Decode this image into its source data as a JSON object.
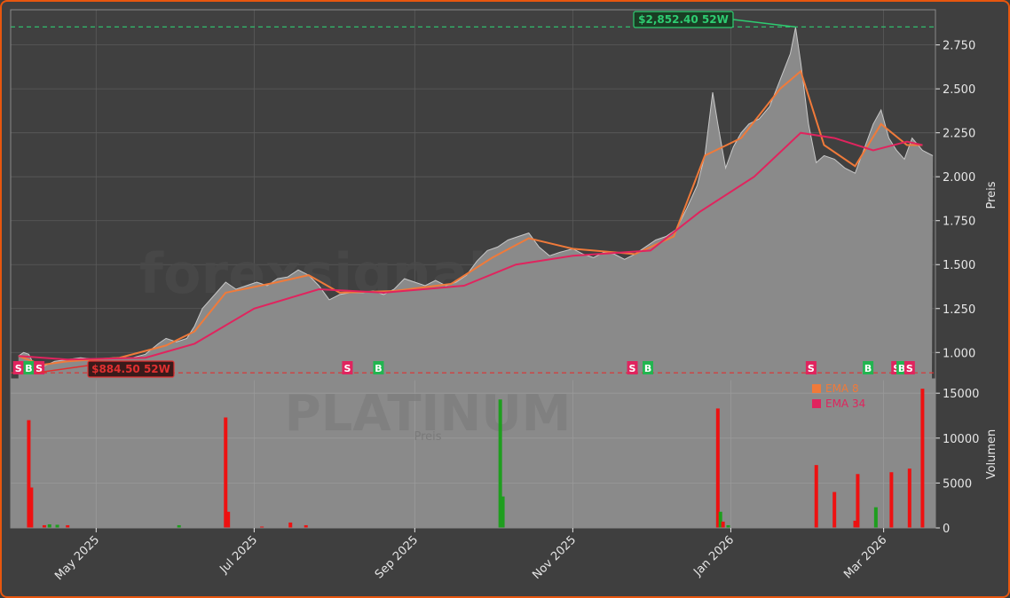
{
  "colors": {
    "background": "#3f3f3f",
    "plot_bg": "#404040",
    "border": "#e8560e",
    "area": "#8a8a8a",
    "ema8": "#f07a3a",
    "ema34": "#e0245e",
    "high": "#2ecc71",
    "low": "#e03030",
    "buy": "#22b550",
    "sell": "#e0245e",
    "vol_up": "#1e9e1e",
    "vol_down": "#ee1111"
  },
  "watermark": {
    "site": "forexsignale.trade",
    "symbol": "PLATINUM",
    "sub": "Preis"
  },
  "price_chart": {
    "ylabel": "Preis",
    "ylim": [
      0.85,
      2.95
    ],
    "yticks": [
      {
        "v": 1.0,
        "label": "1.000"
      },
      {
        "v": 1.25,
        "label": "1.250"
      },
      {
        "v": 1.5,
        "label": "1.500"
      },
      {
        "v": 1.75,
        "label": "1.750"
      },
      {
        "v": 2.0,
        "label": "2.000"
      },
      {
        "v": 2.25,
        "label": "2.250"
      },
      {
        "v": 2.5,
        "label": "2.500"
      },
      {
        "v": 2.75,
        "label": "2.750"
      }
    ],
    "high_label": "$2,852.40 52W",
    "low_label": "$884.50 52W",
    "high_value": 2.8524,
    "low_value": 0.8845,
    "high_date": "2026-01-26",
    "low_date": "2025-04-08",
    "legend": [
      {
        "label": "EMA 8",
        "color": "#f07a3a"
      },
      {
        "label": "EMA 34",
        "color": "#e0245e"
      }
    ],
    "price_series": [
      {
        "d": "2025-04-01",
        "v": 0.98
      },
      {
        "d": "2025-04-03",
        "v": 1.0
      },
      {
        "d": "2025-04-05",
        "v": 0.99
      },
      {
        "d": "2025-04-07",
        "v": 0.93
      },
      {
        "d": "2025-04-09",
        "v": 0.91
      },
      {
        "d": "2025-04-12",
        "v": 0.93
      },
      {
        "d": "2025-04-15",
        "v": 0.95
      },
      {
        "d": "2025-04-20",
        "v": 0.96
      },
      {
        "d": "2025-04-25",
        "v": 0.97
      },
      {
        "d": "2025-05-01",
        "v": 0.96
      },
      {
        "d": "2025-05-08",
        "v": 0.97
      },
      {
        "d": "2025-05-15",
        "v": 0.97
      },
      {
        "d": "2025-05-20",
        "v": 0.99
      },
      {
        "d": "2025-05-25",
        "v": 1.05
      },
      {
        "d": "2025-05-28",
        "v": 1.08
      },
      {
        "d": "2025-06-01",
        "v": 1.06
      },
      {
        "d": "2025-06-05",
        "v": 1.08
      },
      {
        "d": "2025-06-08",
        "v": 1.15
      },
      {
        "d": "2025-06-11",
        "v": 1.25
      },
      {
        "d": "2025-06-14",
        "v": 1.3
      },
      {
        "d": "2025-06-17",
        "v": 1.35
      },
      {
        "d": "2025-06-20",
        "v": 1.4
      },
      {
        "d": "2025-06-24",
        "v": 1.36
      },
      {
        "d": "2025-06-28",
        "v": 1.38
      },
      {
        "d": "2025-07-02",
        "v": 1.4
      },
      {
        "d": "2025-07-06",
        "v": 1.38
      },
      {
        "d": "2025-07-10",
        "v": 1.42
      },
      {
        "d": "2025-07-14",
        "v": 1.43
      },
      {
        "d": "2025-07-18",
        "v": 1.47
      },
      {
        "d": "2025-07-22",
        "v": 1.44
      },
      {
        "d": "2025-07-26",
        "v": 1.38
      },
      {
        "d": "2025-07-30",
        "v": 1.3
      },
      {
        "d": "2025-08-03",
        "v": 1.33
      },
      {
        "d": "2025-08-07",
        "v": 1.34
      },
      {
        "d": "2025-08-12",
        "v": 1.34
      },
      {
        "d": "2025-08-16",
        "v": 1.35
      },
      {
        "d": "2025-08-20",
        "v": 1.33
      },
      {
        "d": "2025-08-24",
        "v": 1.36
      },
      {
        "d": "2025-08-28",
        "v": 1.42
      },
      {
        "d": "2025-09-01",
        "v": 1.4
      },
      {
        "d": "2025-09-05",
        "v": 1.38
      },
      {
        "d": "2025-09-09",
        "v": 1.41
      },
      {
        "d": "2025-09-13",
        "v": 1.38
      },
      {
        "d": "2025-09-17",
        "v": 1.4
      },
      {
        "d": "2025-09-21",
        "v": 1.44
      },
      {
        "d": "2025-09-25",
        "v": 1.52
      },
      {
        "d": "2025-09-29",
        "v": 1.58
      },
      {
        "d": "2025-10-03",
        "v": 1.6
      },
      {
        "d": "2025-10-07",
        "v": 1.64
      },
      {
        "d": "2025-10-11",
        "v": 1.66
      },
      {
        "d": "2025-10-15",
        "v": 1.68
      },
      {
        "d": "2025-10-19",
        "v": 1.6
      },
      {
        "d": "2025-10-23",
        "v": 1.55
      },
      {
        "d": "2025-10-27",
        "v": 1.57
      },
      {
        "d": "2025-11-01",
        "v": 1.59
      },
      {
        "d": "2025-11-05",
        "v": 1.56
      },
      {
        "d": "2025-11-09",
        "v": 1.54
      },
      {
        "d": "2025-11-13",
        "v": 1.57
      },
      {
        "d": "2025-11-17",
        "v": 1.56
      },
      {
        "d": "2025-11-21",
        "v": 1.53
      },
      {
        "d": "2025-11-25",
        "v": 1.56
      },
      {
        "d": "2025-11-29",
        "v": 1.6
      },
      {
        "d": "2025-12-03",
        "v": 1.64
      },
      {
        "d": "2025-12-07",
        "v": 1.66
      },
      {
        "d": "2025-12-11",
        "v": 1.7
      },
      {
        "d": "2025-12-15",
        "v": 1.82
      },
      {
        "d": "2025-12-19",
        "v": 1.95
      },
      {
        "d": "2025-12-22",
        "v": 2.12
      },
      {
        "d": "2025-12-25",
        "v": 2.48
      },
      {
        "d": "2025-12-27",
        "v": 2.3
      },
      {
        "d": "2025-12-30",
        "v": 2.05
      },
      {
        "d": "2026-01-02",
        "v": 2.17
      },
      {
        "d": "2026-01-05",
        "v": 2.25
      },
      {
        "d": "2026-01-08",
        "v": 2.3
      },
      {
        "d": "2026-01-12",
        "v": 2.33
      },
      {
        "d": "2026-01-16",
        "v": 2.4
      },
      {
        "d": "2026-01-20",
        "v": 2.55
      },
      {
        "d": "2026-01-24",
        "v": 2.7
      },
      {
        "d": "2026-01-26",
        "v": 2.85
      },
      {
        "d": "2026-01-28",
        "v": 2.65
      },
      {
        "d": "2026-01-31",
        "v": 2.3
      },
      {
        "d": "2026-02-03",
        "v": 2.08
      },
      {
        "d": "2026-02-06",
        "v": 2.12
      },
      {
        "d": "2026-02-10",
        "v": 2.1
      },
      {
        "d": "2026-02-14",
        "v": 2.05
      },
      {
        "d": "2026-02-18",
        "v": 2.02
      },
      {
        "d": "2026-02-22",
        "v": 2.18
      },
      {
        "d": "2026-02-25",
        "v": 2.3
      },
      {
        "d": "2026-02-28",
        "v": 2.38
      },
      {
        "d": "2026-03-03",
        "v": 2.22
      },
      {
        "d": "2026-03-06",
        "v": 2.15
      },
      {
        "d": "2026-03-09",
        "v": 2.1
      },
      {
        "d": "2026-03-12",
        "v": 2.22
      },
      {
        "d": "2026-03-16",
        "v": 2.15
      },
      {
        "d": "2026-03-20",
        "v": 2.12
      }
    ],
    "ema8": [
      {
        "d": "2025-04-01",
        "v": 0.98
      },
      {
        "d": "2025-04-10",
        "v": 0.93
      },
      {
        "d": "2025-04-20",
        "v": 0.95
      },
      {
        "d": "2025-05-10",
        "v": 0.97
      },
      {
        "d": "2025-05-28",
        "v": 1.04
      },
      {
        "d": "2025-06-08",
        "v": 1.12
      },
      {
        "d": "2025-06-20",
        "v": 1.34
      },
      {
        "d": "2025-07-10",
        "v": 1.4
      },
      {
        "d": "2025-07-22",
        "v": 1.44
      },
      {
        "d": "2025-08-03",
        "v": 1.34
      },
      {
        "d": "2025-08-24",
        "v": 1.35
      },
      {
        "d": "2025-09-15",
        "v": 1.39
      },
      {
        "d": "2025-10-01",
        "v": 1.54
      },
      {
        "d": "2025-10-15",
        "v": 1.65
      },
      {
        "d": "2025-11-01",
        "v": 1.59
      },
      {
        "d": "2025-11-25",
        "v": 1.56
      },
      {
        "d": "2025-12-10",
        "v": 1.66
      },
      {
        "d": "2025-12-22",
        "v": 2.12
      },
      {
        "d": "2026-01-05",
        "v": 2.22
      },
      {
        "d": "2026-01-20",
        "v": 2.5
      },
      {
        "d": "2026-01-28",
        "v": 2.6
      },
      {
        "d": "2026-02-06",
        "v": 2.18
      },
      {
        "d": "2026-02-18",
        "v": 2.06
      },
      {
        "d": "2026-02-28",
        "v": 2.3
      },
      {
        "d": "2026-03-10",
        "v": 2.18
      },
      {
        "d": "2026-03-16",
        "v": 2.18
      }
    ],
    "ema34": [
      {
        "d": "2025-04-01",
        "v": 0.98
      },
      {
        "d": "2025-04-20",
        "v": 0.96
      },
      {
        "d": "2025-05-20",
        "v": 0.97
      },
      {
        "d": "2025-06-08",
        "v": 1.05
      },
      {
        "d": "2025-07-01",
        "v": 1.25
      },
      {
        "d": "2025-07-26",
        "v": 1.36
      },
      {
        "d": "2025-08-20",
        "v": 1.34
      },
      {
        "d": "2025-09-20",
        "v": 1.38
      },
      {
        "d": "2025-10-10",
        "v": 1.5
      },
      {
        "d": "2025-11-01",
        "v": 1.55
      },
      {
        "d": "2025-12-01",
        "v": 1.58
      },
      {
        "d": "2025-12-20",
        "v": 1.8
      },
      {
        "d": "2026-01-10",
        "v": 2.0
      },
      {
        "d": "2026-01-28",
        "v": 2.25
      },
      {
        "d": "2026-02-10",
        "v": 2.22
      },
      {
        "d": "2026-02-25",
        "v": 2.15
      },
      {
        "d": "2026-03-10",
        "v": 2.2
      },
      {
        "d": "2026-03-16",
        "v": 2.18
      }
    ],
    "signals": [
      {
        "d": "2025-04-01",
        "t": "S"
      },
      {
        "d": "2025-04-05",
        "t": "B"
      },
      {
        "d": "2025-04-09",
        "t": "S"
      },
      {
        "d": "2025-05-01",
        "t": "B"
      },
      {
        "d": "2025-08-06",
        "t": "S"
      },
      {
        "d": "2025-08-18",
        "t": "B"
      },
      {
        "d": "2025-11-24",
        "t": "S"
      },
      {
        "d": "2025-11-30",
        "t": "B"
      },
      {
        "d": "2026-02-01",
        "t": "S"
      },
      {
        "d": "2026-02-23",
        "t": "B"
      },
      {
        "d": "2026-03-06",
        "t": "S"
      },
      {
        "d": "2026-03-08",
        "t": "B"
      },
      {
        "d": "2026-03-11",
        "t": "S"
      }
    ]
  },
  "volume_chart": {
    "ylabel": "Volumen",
    "ylim": [
      0,
      16500
    ],
    "yticks": [
      {
        "v": 0,
        "label": "0"
      },
      {
        "v": 5000,
        "label": "5000"
      },
      {
        "v": 10000,
        "label": "10000"
      },
      {
        "v": 15000,
        "label": "15000"
      }
    ],
    "bars": [
      {
        "d": "2025-04-05",
        "v": 12000,
        "dir": "down"
      },
      {
        "d": "2025-04-06",
        "v": 4500,
        "dir": "down"
      },
      {
        "d": "2025-04-11",
        "v": 300,
        "dir": "down"
      },
      {
        "d": "2025-04-13",
        "v": 400,
        "dir": "up"
      },
      {
        "d": "2025-04-16",
        "v": 350,
        "dir": "up"
      },
      {
        "d": "2025-04-20",
        "v": 300,
        "dir": "down"
      },
      {
        "d": "2025-06-02",
        "v": 300,
        "dir": "up"
      },
      {
        "d": "2025-06-20",
        "v": 12300,
        "dir": "down"
      },
      {
        "d": "2025-06-21",
        "v": 1800,
        "dir": "down"
      },
      {
        "d": "2025-07-04",
        "v": 150,
        "dir": "down"
      },
      {
        "d": "2025-07-15",
        "v": 600,
        "dir": "down"
      },
      {
        "d": "2025-07-21",
        "v": 300,
        "dir": "down"
      },
      {
        "d": "2025-10-04",
        "v": 14300,
        "dir": "up"
      },
      {
        "d": "2025-10-05",
        "v": 3500,
        "dir": "up"
      },
      {
        "d": "2025-12-27",
        "v": 13300,
        "dir": "down"
      },
      {
        "d": "2025-12-28",
        "v": 1800,
        "dir": "up"
      },
      {
        "d": "2025-12-29",
        "v": 700,
        "dir": "down"
      },
      {
        "d": "2025-12-31",
        "v": 300,
        "dir": "up"
      },
      {
        "d": "2026-02-03",
        "v": 7000,
        "dir": "down"
      },
      {
        "d": "2026-02-10",
        "v": 4000,
        "dir": "down"
      },
      {
        "d": "2026-02-18",
        "v": 800,
        "dir": "down"
      },
      {
        "d": "2026-02-19",
        "v": 6000,
        "dir": "down"
      },
      {
        "d": "2026-02-26",
        "v": 2300,
        "dir": "up"
      },
      {
        "d": "2026-03-04",
        "v": 6200,
        "dir": "down"
      },
      {
        "d": "2026-03-11",
        "v": 6600,
        "dir": "down"
      },
      {
        "d": "2026-03-16",
        "v": 15500,
        "dir": "down"
      }
    ]
  },
  "x_axis": {
    "range": [
      "2025-03-29",
      "2026-03-21"
    ],
    "ticks": [
      {
        "d": "2025-05-01",
        "label": "May 2025"
      },
      {
        "d": "2025-07-01",
        "label": "Jul 2025"
      },
      {
        "d": "2025-09-01",
        "label": "Sep 2025"
      },
      {
        "d": "2025-11-01",
        "label": "Nov 2025"
      },
      {
        "d": "2026-01-01",
        "label": "Jan 2026"
      },
      {
        "d": "2026-03-01",
        "label": "Mar 2026"
      }
    ]
  }
}
